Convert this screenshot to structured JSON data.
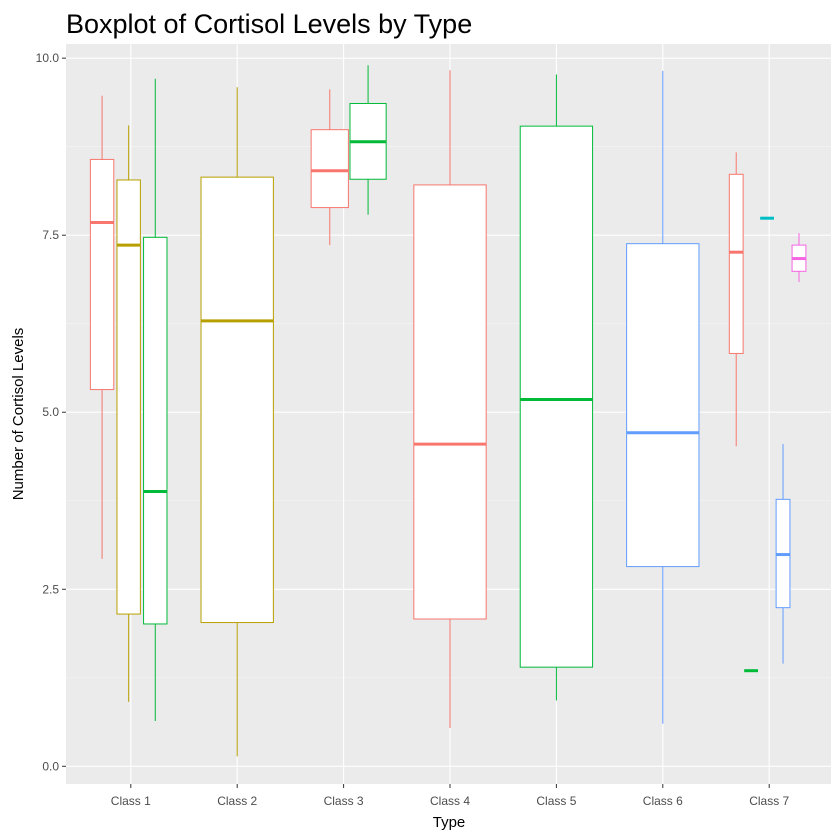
{
  "chart_data": {
    "type": "boxplot",
    "title": "Boxplot of Cortisol Levels by Type",
    "xlabel": "Type",
    "ylabel": "Number of Cortisol Levels",
    "ylim": [
      -0.25,
      10.2
    ],
    "yticks": [
      0.0,
      2.5,
      5.0,
      7.5,
      10.0
    ],
    "ytick_labels": [
      "0.0",
      "2.5",
      "5.0",
      "7.5",
      "10.0"
    ],
    "categories": [
      "Class 1",
      "Class 2",
      "Class 3",
      "Class 4",
      "Class 5",
      "Class 6",
      "Class 7"
    ],
    "grid": true,
    "colors": {
      "panel": "#EBEBEB",
      "grid_major": "#FFFFFF",
      "grid_minor": "#F5F5F5",
      "tick": "#333333"
    },
    "boxes": [
      {
        "category": "Class 1",
        "group": "red",
        "color": "#F8766D",
        "offset": -0.27,
        "width": 0.22,
        "whisker_low": 2.93,
        "q1": 5.32,
        "median": 7.68,
        "q3": 8.57,
        "whisker_high": 9.47
      },
      {
        "category": "Class 1",
        "group": "olive",
        "color": "#B79F00",
        "offset": -0.02,
        "width": 0.22,
        "whisker_low": 0.91,
        "q1": 2.15,
        "median": 7.36,
        "q3": 8.28,
        "whisker_high": 9.05
      },
      {
        "category": "Class 1",
        "group": "green",
        "color": "#00BA38",
        "offset": 0.23,
        "width": 0.22,
        "whisker_low": 0.64,
        "q1": 2.01,
        "median": 3.88,
        "q3": 7.47,
        "whisker_high": 9.71
      },
      {
        "category": "Class 2",
        "group": "olive",
        "color": "#B79F00",
        "offset": 0.0,
        "width": 0.68,
        "whisker_low": 0.14,
        "q1": 2.03,
        "median": 6.29,
        "q3": 8.32,
        "whisker_high": 9.59
      },
      {
        "category": "Class 3",
        "group": "red",
        "color": "#F8766D",
        "offset": -0.13,
        "width": 0.35,
        "whisker_low": 7.36,
        "q1": 7.89,
        "median": 8.41,
        "q3": 8.99,
        "whisker_high": 9.56
      },
      {
        "category": "Class 3",
        "group": "green",
        "color": "#00BA38",
        "offset": 0.23,
        "width": 0.34,
        "whisker_low": 7.79,
        "q1": 8.29,
        "median": 8.82,
        "q3": 9.36,
        "whisker_high": 9.9
      },
      {
        "category": "Class 4",
        "group": "red",
        "color": "#F8766D",
        "offset": 0.0,
        "width": 0.68,
        "whisker_low": 0.54,
        "q1": 2.08,
        "median": 4.55,
        "q3": 8.21,
        "whisker_high": 9.83
      },
      {
        "category": "Class 5",
        "group": "green",
        "color": "#00BA38",
        "offset": 0.0,
        "width": 0.68,
        "whisker_low": 0.93,
        "q1": 1.4,
        "median": 5.18,
        "q3": 9.04,
        "whisker_high": 9.77
      },
      {
        "category": "Class 6",
        "group": "blue",
        "color": "#619CFF",
        "offset": 0.0,
        "width": 0.68,
        "whisker_low": 0.6,
        "q1": 2.82,
        "median": 4.71,
        "q3": 7.38,
        "whisker_high": 9.82
      },
      {
        "category": "Class 7",
        "group": "red",
        "color": "#F8766D",
        "offset": -0.31,
        "width": 0.13,
        "whisker_low": 4.52,
        "q1": 5.83,
        "median": 7.26,
        "q3": 8.36,
        "whisker_high": 8.67
      },
      {
        "category": "Class 7",
        "group": "green",
        "color": "#00BA38",
        "offset": -0.17,
        "width": 0.13,
        "whisker_low": 1.35,
        "q1": 1.35,
        "median": 1.35,
        "q3": 1.35,
        "whisker_high": 1.35
      },
      {
        "category": "Class 7",
        "group": "cyan",
        "color": "#00BFC4",
        "offset": -0.02,
        "width": 0.13,
        "whisker_low": 7.74,
        "q1": 7.74,
        "median": 7.74,
        "q3": 7.74,
        "whisker_high": 7.74
      },
      {
        "category": "Class 7",
        "group": "blue",
        "color": "#619CFF",
        "offset": 0.13,
        "width": 0.13,
        "whisker_low": 1.45,
        "q1": 2.24,
        "median": 2.99,
        "q3": 3.77,
        "whisker_high": 4.55
      },
      {
        "category": "Class 7",
        "group": "pink",
        "color": "#F564E3",
        "offset": 0.28,
        "width": 0.13,
        "whisker_low": 6.84,
        "q1": 6.99,
        "median": 7.17,
        "q3": 7.36,
        "whisker_high": 7.53
      }
    ]
  }
}
